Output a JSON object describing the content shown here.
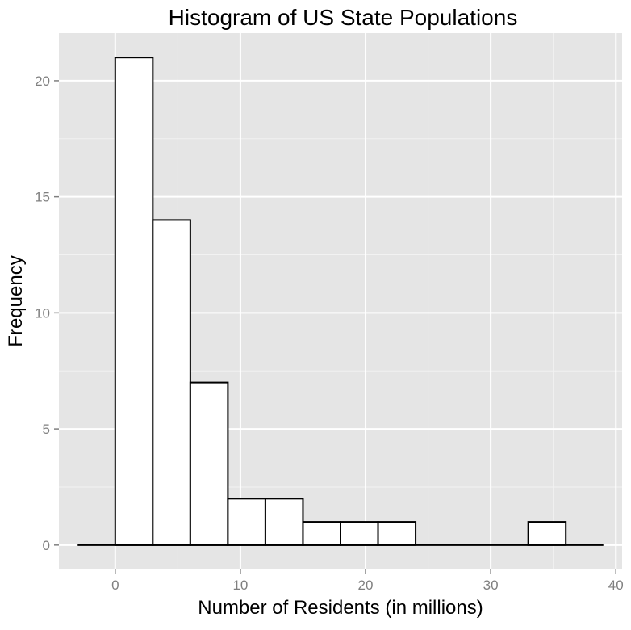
{
  "chart_data": {
    "type": "bar",
    "title": "Histogram of US State Populations",
    "xlabel": "Number of Residents (in millions)",
    "ylabel": "Frequency",
    "xlim": [
      -4.5,
      40.5
    ],
    "ylim": [
      -1.05,
      22.05
    ],
    "x_ticks": [
      0,
      10,
      20,
      30,
      40
    ],
    "y_ticks": [
      0,
      5,
      10,
      15,
      20
    ],
    "grid": true,
    "background": "#e5e5e5",
    "bins": [
      {
        "x0": -3,
        "x1": 0,
        "count": 0
      },
      {
        "x0": 0,
        "x1": 3,
        "count": 21
      },
      {
        "x0": 3,
        "x1": 6,
        "count": 14
      },
      {
        "x0": 6,
        "x1": 9,
        "count": 7
      },
      {
        "x0": 9,
        "x1": 12,
        "count": 2
      },
      {
        "x0": 12,
        "x1": 15,
        "count": 2
      },
      {
        "x0": 15,
        "x1": 18,
        "count": 1
      },
      {
        "x0": 18,
        "x1": 21,
        "count": 1
      },
      {
        "x0": 21,
        "x1": 24,
        "count": 1
      },
      {
        "x0": 24,
        "x1": 27,
        "count": 0
      },
      {
        "x0": 27,
        "x1": 30,
        "count": 0
      },
      {
        "x0": 30,
        "x1": 33,
        "count": 0
      },
      {
        "x0": 33,
        "x1": 36,
        "count": 1
      },
      {
        "x0": 36,
        "x1": 39,
        "count": 0
      }
    ]
  }
}
